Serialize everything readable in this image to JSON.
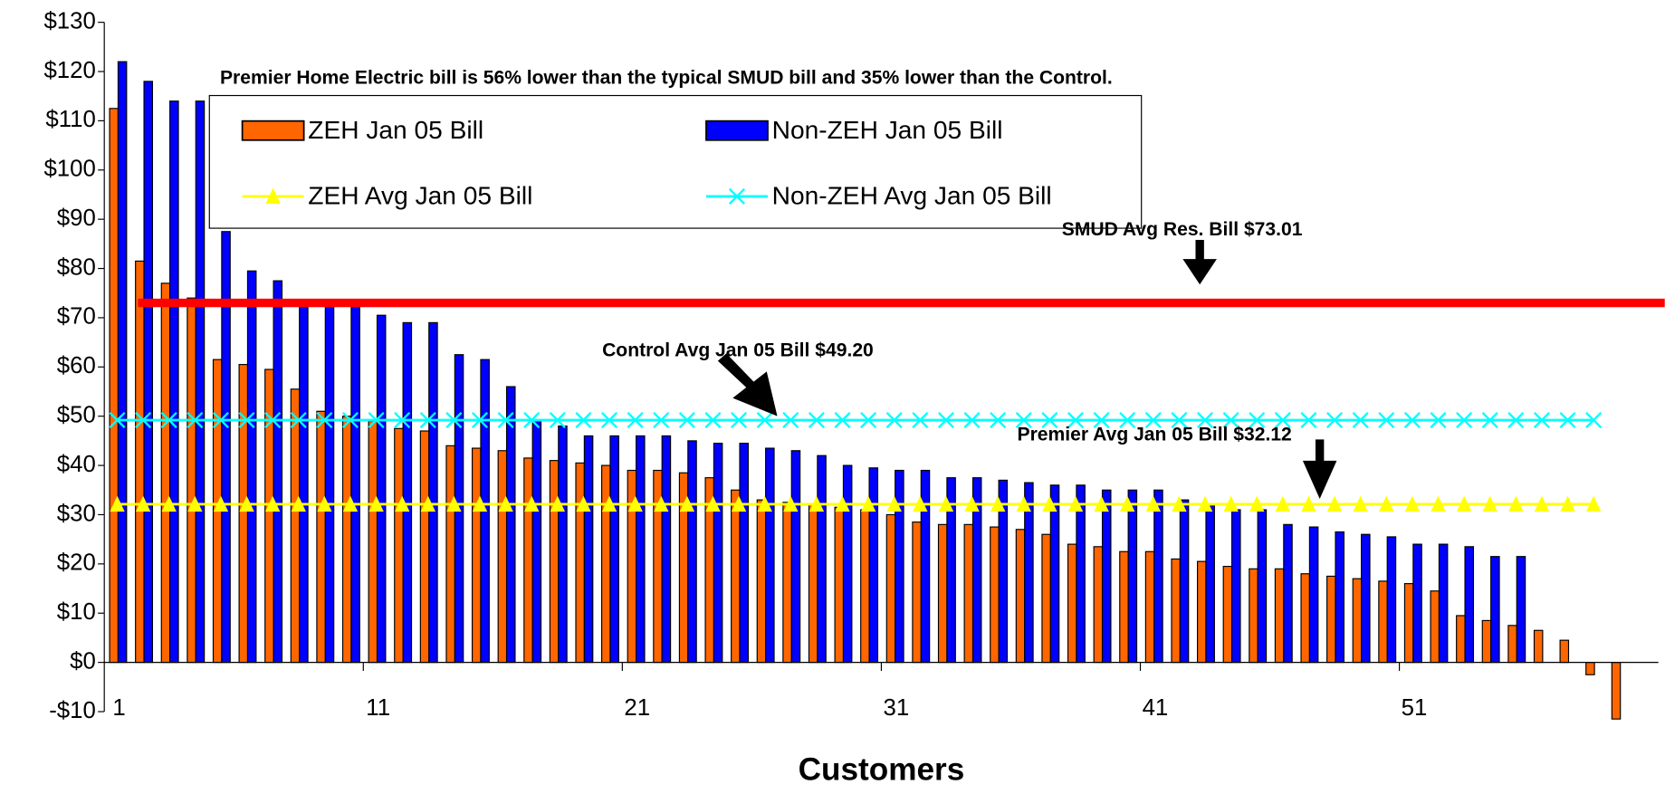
{
  "chart_data": {
    "type": "bar",
    "title": "Premier Home Electric bill is 56% lower than the typical SMUD bill and 35% lower than the Control.",
    "x_label": "Customers",
    "categories": [
      "1",
      null,
      null,
      null,
      null,
      null,
      null,
      null,
      null,
      null,
      "11",
      null,
      null,
      null,
      null,
      null,
      null,
      null,
      null,
      null,
      "21",
      null,
      null,
      null,
      null,
      null,
      null,
      null,
      null,
      null,
      "31",
      null,
      null,
      null,
      null,
      null,
      null,
      null,
      null,
      null,
      "41",
      null,
      null,
      null,
      null,
      null,
      null,
      null,
      null,
      null,
      "51",
      null,
      null,
      null,
      null,
      null,
      null,
      null,
      null,
      null
    ],
    "series": [
      {
        "name": "ZEH Jan 05 Bill",
        "color": "#ff6600",
        "kind": "bar",
        "values": [
          112.5,
          81.5,
          77,
          74,
          61.5,
          60.5,
          59.5,
          55.5,
          51,
          50,
          49,
          47.5,
          47,
          44,
          43.5,
          43,
          41.5,
          41,
          40.5,
          40,
          39,
          39,
          38.5,
          37.5,
          35,
          33,
          32.5,
          32,
          31.5,
          31,
          30,
          28.5,
          28,
          28,
          27.5,
          27,
          26,
          24,
          23.5,
          22.5,
          22.5,
          21,
          20.5,
          19.5,
          19,
          19,
          18,
          17.5,
          17,
          16.5,
          16,
          14.5,
          9.5,
          8.5,
          7.5,
          6.5,
          4.5,
          -2.5,
          -11.5,
          null
        ]
      },
      {
        "name": "Non-ZEH Jan 05 Bill",
        "color": "#0000ff",
        "kind": "bar",
        "values": [
          122,
          118,
          114,
          114,
          87.5,
          79.5,
          77.5,
          73,
          73,
          73,
          70.5,
          69,
          69,
          62.5,
          61.5,
          56,
          49,
          48,
          46,
          46,
          46,
          46,
          45,
          44.5,
          44.5,
          43.5,
          43,
          42,
          40,
          39.5,
          39,
          39,
          37.5,
          37.5,
          37,
          36.5,
          36,
          36,
          35,
          35,
          35,
          33,
          32,
          31,
          31,
          28,
          27.5,
          26.5,
          26,
          25.5,
          24,
          24,
          23.5,
          21.5,
          21.5,
          null,
          null,
          null,
          null,
          null
        ]
      },
      {
        "name": "ZEH Avg Jan 05 Bill",
        "color": "#ffff00",
        "kind": "line",
        "marker": "triangle",
        "values": [
          32.12,
          32.12,
          32.12,
          32.12,
          32.12,
          32.12,
          32.12,
          32.12,
          32.12,
          32.12,
          32.12,
          32.12,
          32.12,
          32.12,
          32.12,
          32.12,
          32.12,
          32.12,
          32.12,
          32.12,
          32.12,
          32.12,
          32.12,
          32.12,
          32.12,
          32.12,
          32.12,
          32.12,
          32.12,
          32.12,
          32.12,
          32.12,
          32.12,
          32.12,
          32.12,
          32.12,
          32.12,
          32.12,
          32.12,
          32.12,
          32.12,
          32.12,
          32.12,
          32.12,
          32.12,
          32.12,
          32.12,
          32.12,
          32.12,
          32.12,
          32.12,
          32.12,
          32.12,
          32.12,
          32.12,
          32.12,
          32.12,
          32.12,
          null,
          null
        ]
      },
      {
        "name": "Non-ZEH Avg Jan 05 Bill",
        "color": "#00ffff",
        "kind": "line",
        "marker": "x",
        "values": [
          49.2,
          49.2,
          49.2,
          49.2,
          49.2,
          49.2,
          49.2,
          49.2,
          49.2,
          49.2,
          49.2,
          49.2,
          49.2,
          49.2,
          49.2,
          49.2,
          49.2,
          49.2,
          49.2,
          49.2,
          49.2,
          49.2,
          49.2,
          49.2,
          49.2,
          49.2,
          49.2,
          49.2,
          49.2,
          49.2,
          49.2,
          49.2,
          49.2,
          49.2,
          49.2,
          49.2,
          49.2,
          49.2,
          49.2,
          49.2,
          49.2,
          49.2,
          49.2,
          49.2,
          49.2,
          49.2,
          49.2,
          49.2,
          49.2,
          49.2,
          49.2,
          49.2,
          49.2,
          49.2,
          49.2,
          49.2,
          49.2,
          49.2,
          null,
          null
        ]
      }
    ],
    "reference_line": {
      "value": 73.01,
      "color": "#ff0000"
    },
    "annotations": [
      "SMUD Avg Res. Bill $73.01",
      "Control Avg Jan 05 Bill $49.20",
      "Premier Avg Jan 05 Bill $32.12"
    ],
    "ylim": [
      -10,
      130
    ],
    "yticks": [
      {
        "value": -10,
        "label": "-$10"
      },
      {
        "value": 0,
        "label": "$0"
      },
      {
        "value": 10,
        "label": "$10"
      },
      {
        "value": 20,
        "label": "$20"
      },
      {
        "value": 30,
        "label": "$30"
      },
      {
        "value": 40,
        "label": "$40"
      },
      {
        "value": 50,
        "label": "$50"
      },
      {
        "value": 60,
        "label": "$60"
      },
      {
        "value": 70,
        "label": "$70"
      },
      {
        "value": 80,
        "label": "$80"
      },
      {
        "value": 90,
        "label": "$90"
      },
      {
        "value": 100,
        "label": "$100"
      },
      {
        "value": 110,
        "label": "$110"
      },
      {
        "value": 120,
        "label": "$120"
      },
      {
        "value": 130,
        "label": "$130"
      }
    ],
    "grid": false
  }
}
